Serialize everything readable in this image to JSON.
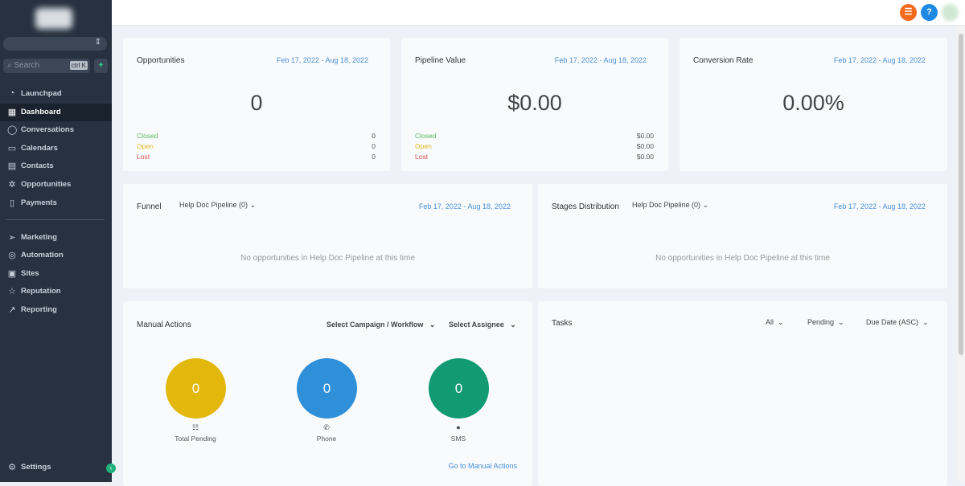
{
  "sidebar": {
    "search_placeholder": "Search",
    "shortcut": "ctrl K",
    "items": [
      {
        "label": "Launchpad",
        "icon": "rocket-icon"
      },
      {
        "label": "Dashboard",
        "icon": "grid-icon"
      },
      {
        "label": "Conversations",
        "icon": "chat-icon"
      },
      {
        "label": "Calendars",
        "icon": "calendar-icon"
      },
      {
        "label": "Contacts",
        "icon": "contacts-icon"
      },
      {
        "label": "Opportunities",
        "icon": "opportunities-icon"
      },
      {
        "label": "Payments",
        "icon": "payments-icon"
      },
      {
        "label": "Marketing",
        "icon": "send-icon"
      },
      {
        "label": "Automation",
        "icon": "automation-icon"
      },
      {
        "label": "Sites",
        "icon": "sites-icon"
      },
      {
        "label": "Reputation",
        "icon": "star-icon"
      },
      {
        "label": "Reporting",
        "icon": "trend-icon"
      }
    ],
    "settings": "Settings",
    "active": "Dashboard"
  },
  "topbar": {
    "help": "?",
    "colors": {
      "notif": "#f26b1d",
      "help": "#1e88e5"
    }
  },
  "cards": {
    "opportunities": {
      "title": "Opportunities",
      "date": "Feb 17, 2022 - Aug 18, 2022",
      "value": "0",
      "rows": [
        {
          "label": "Closed",
          "value": "0"
        },
        {
          "label": "Open",
          "value": "0"
        },
        {
          "label": "Lost",
          "value": "0"
        }
      ]
    },
    "pipeline": {
      "title": "Pipeline Value",
      "date": "Feb 17, 2022 - Aug 18, 2022",
      "value": "$0.00",
      "rows": [
        {
          "label": "Closed",
          "value": "$0.00"
        },
        {
          "label": "Open",
          "value": "$0.00"
        },
        {
          "label": "Lost",
          "value": "$0.00"
        }
      ]
    },
    "conversion": {
      "title": "Conversion Rate",
      "date": "Feb 17, 2022 - Aug 18, 2022",
      "value": "0.00%"
    },
    "funnel": {
      "title": "Funnel",
      "pipeline": "Help Doc Pipeline (0)",
      "date": "Feb 17, 2022 - Aug 18, 2022",
      "empty": "No opportunities in Help Doc Pipeline at this time"
    },
    "stages": {
      "title": "Stages Distribution",
      "pipeline": "Help Doc Pipeline (0)",
      "date": "Feb 17, 2022 - Aug 18, 2022",
      "empty": "No opportunities in Help Doc Pipeline at this time"
    },
    "manual": {
      "title": "Manual Actions",
      "campaign": "Select Campaign / Workflow",
      "assignee": "Select Assignee",
      "link": "Go to Manual Actions",
      "stats": [
        {
          "label": "Total Pending",
          "value": "0",
          "color": "#e2b80d",
          "icon": "list-icon"
        },
        {
          "label": "Phone",
          "value": "0",
          "color": "#2f8fd8",
          "icon": "phone-icon"
        },
        {
          "label": "SMS",
          "value": "0",
          "color": "#129a73",
          "icon": "sms-icon"
        }
      ]
    },
    "tasks": {
      "title": "Tasks",
      "filter1": "All",
      "filter2": "Pending",
      "sort": "Due Date (ASC)"
    }
  },
  "status_colors": {
    "closed": "#5cb85c",
    "open": "#e8b923",
    "lost": "#d9534f"
  }
}
